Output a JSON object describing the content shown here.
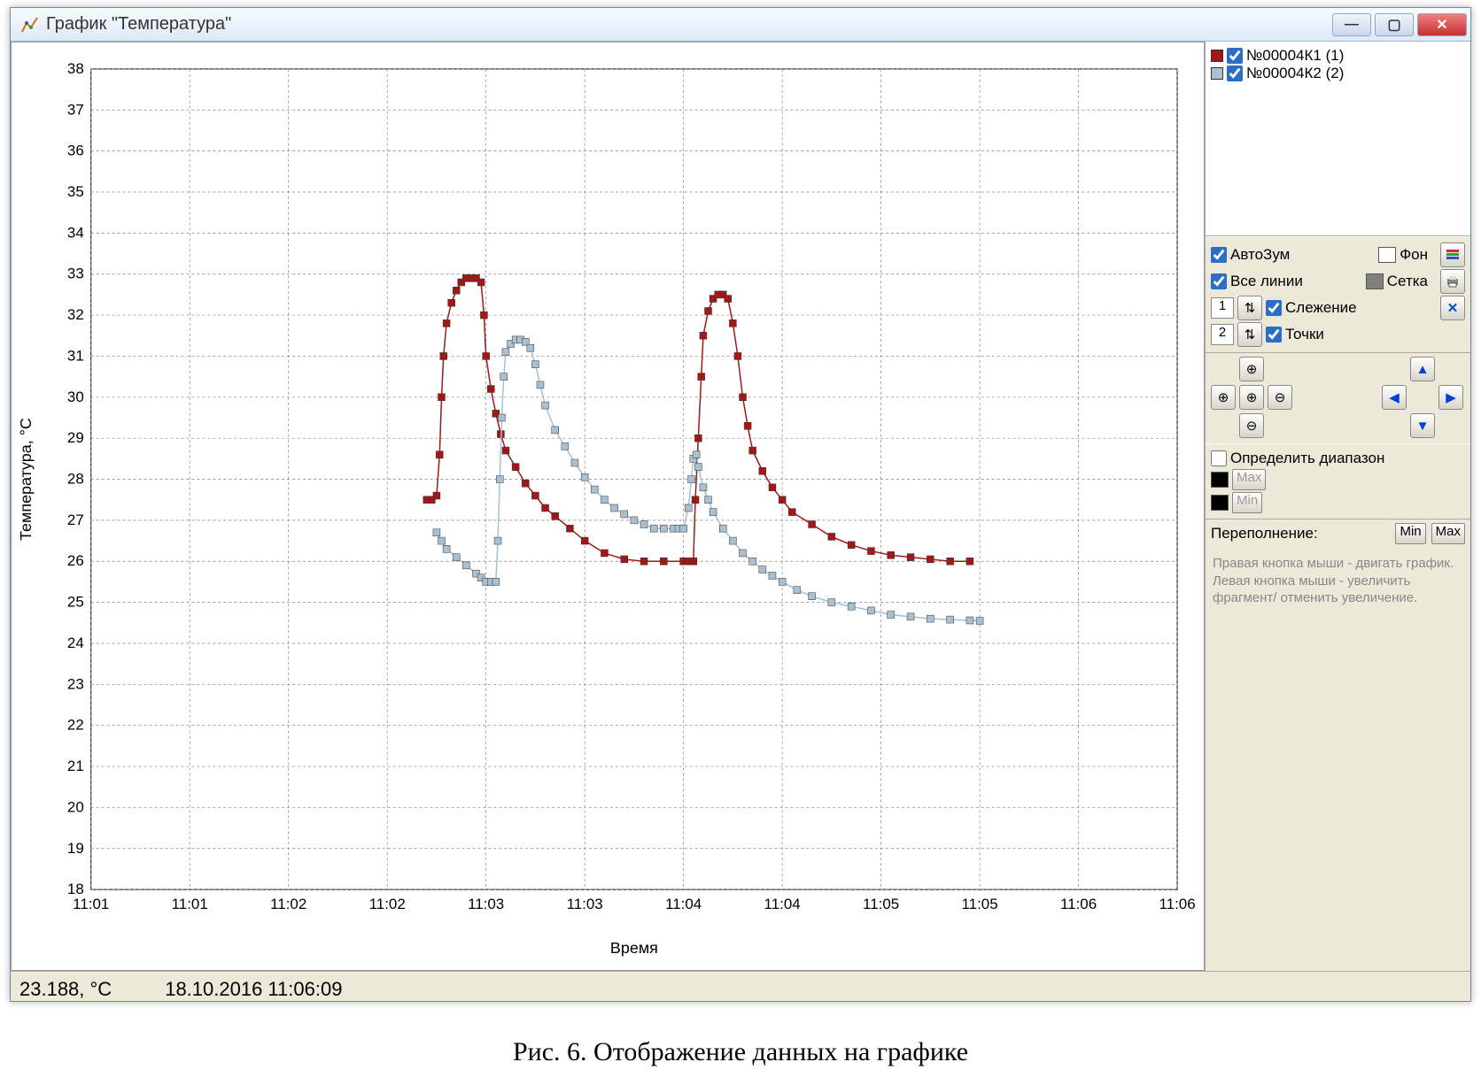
{
  "window": {
    "title": "График \"Температура\""
  },
  "caption": "Рис. 6. Отображение данных на графике",
  "status": {
    "temp": "23.188, °C",
    "datetime": "18.10.2016 11:06:09"
  },
  "legend": {
    "items": [
      {
        "label": "№00004К1 (1)",
        "color": "#a01818",
        "checked": true
      },
      {
        "label": "№00004К2 (2)",
        "color": "#a8c0d0",
        "checked": true
      }
    ]
  },
  "controls": {
    "autozoom": {
      "label": "АвтоЗум",
      "checked": true
    },
    "background": {
      "label": "Фон",
      "color": "#ffffff"
    },
    "alllines": {
      "label": "Все линии",
      "checked": true
    },
    "grid_label": "Сетка",
    "grid_color": "#808080",
    "tracking": {
      "num": "1",
      "label": "Слежение",
      "checked": true
    },
    "points": {
      "num": "2",
      "label": "Точки",
      "checked": true
    },
    "range_label": "Определить диапазон",
    "max_label": "Max",
    "min_label": "Min",
    "overflow_label": "Переполнение:",
    "overflow_min": "Min",
    "overflow_max": "Max"
  },
  "help": "Правая кнопка мыши - двигать график.\nЛевая кнопка мыши - увеличить фрагмент/ отменить увеличение.",
  "chart": {
    "ylabel": "Температура, °C",
    "xlabel": "Время",
    "ylim": [
      18,
      38
    ],
    "yticks": [
      18,
      19,
      20,
      21,
      22,
      23,
      24,
      25,
      26,
      27,
      28,
      29,
      30,
      31,
      32,
      33,
      34,
      35,
      36,
      37,
      38
    ],
    "xticks": [
      "11:01",
      "11:01",
      "11:02",
      "11:02",
      "11:03",
      "11:03",
      "11:04",
      "11:04",
      "11:05",
      "11:05",
      "11:06",
      "11:06"
    ],
    "grid_color": "#808080",
    "bg_color": "#ffffff",
    "series": [
      {
        "name": "K1",
        "color": "#a01818",
        "points": [
          [
            3.4,
            27.5
          ],
          [
            3.45,
            27.5
          ],
          [
            3.5,
            27.6
          ],
          [
            3.53,
            28.6
          ],
          [
            3.55,
            30.0
          ],
          [
            3.57,
            31.0
          ],
          [
            3.6,
            31.8
          ],
          [
            3.65,
            32.3
          ],
          [
            3.7,
            32.6
          ],
          [
            3.75,
            32.8
          ],
          [
            3.8,
            32.9
          ],
          [
            3.85,
            32.9
          ],
          [
            3.9,
            32.9
          ],
          [
            3.95,
            32.8
          ],
          [
            3.98,
            32.0
          ],
          [
            4.0,
            31.0
          ],
          [
            4.05,
            30.2
          ],
          [
            4.1,
            29.6
          ],
          [
            4.15,
            29.1
          ],
          [
            4.2,
            28.7
          ],
          [
            4.3,
            28.3
          ],
          [
            4.4,
            27.9
          ],
          [
            4.5,
            27.6
          ],
          [
            4.6,
            27.3
          ],
          [
            4.7,
            27.1
          ],
          [
            4.85,
            26.8
          ],
          [
            5.0,
            26.5
          ],
          [
            5.2,
            26.2
          ],
          [
            5.4,
            26.05
          ],
          [
            5.6,
            26.0
          ],
          [
            5.8,
            26.0
          ],
          [
            6.0,
            26.0
          ],
          [
            6.05,
            26.0
          ],
          [
            6.1,
            26.0
          ],
          [
            6.12,
            27.5
          ],
          [
            6.15,
            29.0
          ],
          [
            6.18,
            30.5
          ],
          [
            6.2,
            31.5
          ],
          [
            6.25,
            32.1
          ],
          [
            6.3,
            32.4
          ],
          [
            6.35,
            32.5
          ],
          [
            6.4,
            32.5
          ],
          [
            6.45,
            32.4
          ],
          [
            6.5,
            31.8
          ],
          [
            6.55,
            31.0
          ],
          [
            6.6,
            30.0
          ],
          [
            6.65,
            29.3
          ],
          [
            6.7,
            28.7
          ],
          [
            6.8,
            28.2
          ],
          [
            6.9,
            27.8
          ],
          [
            7.0,
            27.5
          ],
          [
            7.1,
            27.2
          ],
          [
            7.3,
            26.9
          ],
          [
            7.5,
            26.6
          ],
          [
            7.7,
            26.4
          ],
          [
            7.9,
            26.25
          ],
          [
            8.1,
            26.15
          ],
          [
            8.3,
            26.1
          ],
          [
            8.5,
            26.05
          ],
          [
            8.7,
            26.0
          ],
          [
            8.9,
            26.0
          ]
        ]
      },
      {
        "name": "K2",
        "color": "#a8c0d0",
        "points": [
          [
            3.5,
            26.7
          ],
          [
            3.55,
            26.5
          ],
          [
            3.6,
            26.3
          ],
          [
            3.7,
            26.1
          ],
          [
            3.8,
            25.9
          ],
          [
            3.9,
            25.7
          ],
          [
            3.95,
            25.6
          ],
          [
            4.0,
            25.5
          ],
          [
            4.05,
            25.5
          ],
          [
            4.1,
            25.5
          ],
          [
            4.12,
            26.5
          ],
          [
            4.14,
            28.0
          ],
          [
            4.16,
            29.5
          ],
          [
            4.18,
            30.5
          ],
          [
            4.2,
            31.1
          ],
          [
            4.25,
            31.3
          ],
          [
            4.3,
            31.4
          ],
          [
            4.35,
            31.4
          ],
          [
            4.4,
            31.35
          ],
          [
            4.45,
            31.2
          ],
          [
            4.5,
            30.8
          ],
          [
            4.55,
            30.3
          ],
          [
            4.6,
            29.8
          ],
          [
            4.7,
            29.2
          ],
          [
            4.8,
            28.8
          ],
          [
            4.9,
            28.4
          ],
          [
            5.0,
            28.05
          ],
          [
            5.1,
            27.75
          ],
          [
            5.2,
            27.5
          ],
          [
            5.3,
            27.3
          ],
          [
            5.4,
            27.15
          ],
          [
            5.5,
            27.0
          ],
          [
            5.6,
            26.9
          ],
          [
            5.7,
            26.8
          ],
          [
            5.8,
            26.8
          ],
          [
            5.9,
            26.8
          ],
          [
            5.95,
            26.8
          ],
          [
            6.0,
            26.8
          ],
          [
            6.05,
            27.3
          ],
          [
            6.08,
            28.0
          ],
          [
            6.1,
            28.5
          ],
          [
            6.13,
            28.6
          ],
          [
            6.15,
            28.3
          ],
          [
            6.2,
            27.8
          ],
          [
            6.25,
            27.5
          ],
          [
            6.3,
            27.2
          ],
          [
            6.4,
            26.8
          ],
          [
            6.5,
            26.5
          ],
          [
            6.6,
            26.2
          ],
          [
            6.7,
            26.0
          ],
          [
            6.8,
            25.8
          ],
          [
            6.9,
            25.65
          ],
          [
            7.0,
            25.5
          ],
          [
            7.15,
            25.3
          ],
          [
            7.3,
            25.15
          ],
          [
            7.5,
            25.0
          ],
          [
            7.7,
            24.9
          ],
          [
            7.9,
            24.8
          ],
          [
            8.1,
            24.7
          ],
          [
            8.3,
            24.65
          ],
          [
            8.5,
            24.6
          ],
          [
            8.7,
            24.58
          ],
          [
            8.9,
            24.56
          ],
          [
            9.0,
            24.55
          ]
        ]
      }
    ]
  }
}
